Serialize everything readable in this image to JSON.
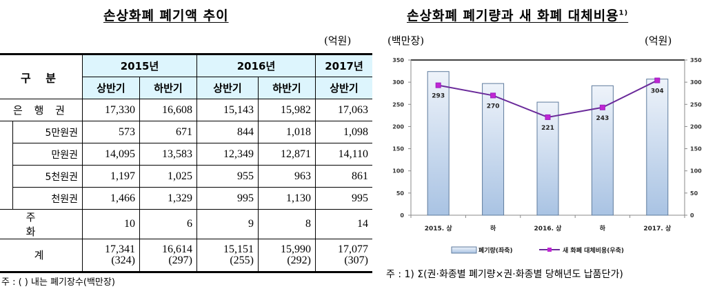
{
  "left": {
    "title": "손상화폐 폐기액 추이",
    "unit": "(억원)",
    "table": {
      "corner": "구 분",
      "years": [
        {
          "label": "2015년",
          "span": 2
        },
        {
          "label": "2016년",
          "span": 2
        },
        {
          "label": "2017년",
          "span": 1
        }
      ],
      "halves": [
        "상반기",
        "하반기",
        "상반기",
        "하반기",
        "상반기"
      ],
      "rows": [
        {
          "label": "은 행 권",
          "values": [
            "17,330",
            "16,608",
            "15,143",
            "15,982",
            "17,063"
          ]
        },
        {
          "label": "5만원권",
          "values": [
            "573",
            "671",
            "844",
            "1,018",
            "1,098"
          ],
          "sub": true
        },
        {
          "label": "만원권",
          "values": [
            "14,095",
            "13,583",
            "12,349",
            "12,871",
            "14,110"
          ],
          "sub": true
        },
        {
          "label": "5천원권",
          "values": [
            "1,197",
            "1,025",
            "955",
            "963",
            "861"
          ],
          "sub": true
        },
        {
          "label": "천원권",
          "values": [
            "1,466",
            "1,329",
            "995",
            "1,130",
            "995"
          ],
          "sub": true
        },
        {
          "label": "주 화",
          "values": [
            "10",
            "6",
            "9",
            "8",
            "14"
          ]
        },
        {
          "label": "계",
          "values": [
            "17,341",
            "16,614",
            "15,151",
            "15,990",
            "17,077"
          ],
          "paren": [
            "(324)",
            "(297)",
            "(255)",
            "(292)",
            "(307)"
          ]
        }
      ]
    },
    "note": "주 : (   ) 내는  폐기장수(백만장)"
  },
  "right": {
    "title": "손상화폐 폐기량과 새 화폐 대체비용",
    "title_sup": "1)",
    "unit_left": "(백만장)",
    "unit_right": "(억원)",
    "note": "주 :  1)  Σ(권·화종별  폐기량×권·화종별  당해년도  납품단가)"
  },
  "chart_data": {
    "type": "bar+line",
    "title": "손상화폐 폐기량과 새 화폐 대체비용",
    "categories": [
      "2015. 상",
      "하",
      "2016. 상",
      "하",
      "2017. 상"
    ],
    "series": [
      {
        "name": "폐기량(좌축)",
        "type": "bar",
        "axis": "left",
        "values": [
          324,
          297,
          255,
          292,
          307
        ],
        "color": "#b8cfe8"
      },
      {
        "name": "새 화폐 대체비용(우축)",
        "type": "line",
        "axis": "right",
        "values": [
          293,
          270,
          221,
          243,
          304
        ],
        "color": "#9b1fbf",
        "data_labels": [
          "293",
          "270",
          "221",
          "243",
          "304"
        ]
      }
    ],
    "ylabel_left": "(백만장)",
    "ylabel_right": "(억원)",
    "ylim_left": [
      0,
      350
    ],
    "ylim_right": [
      0,
      350
    ],
    "yticks": [
      0,
      50,
      100,
      150,
      200,
      250,
      300,
      350
    ],
    "legend_position": "bottom",
    "grid": false
  }
}
